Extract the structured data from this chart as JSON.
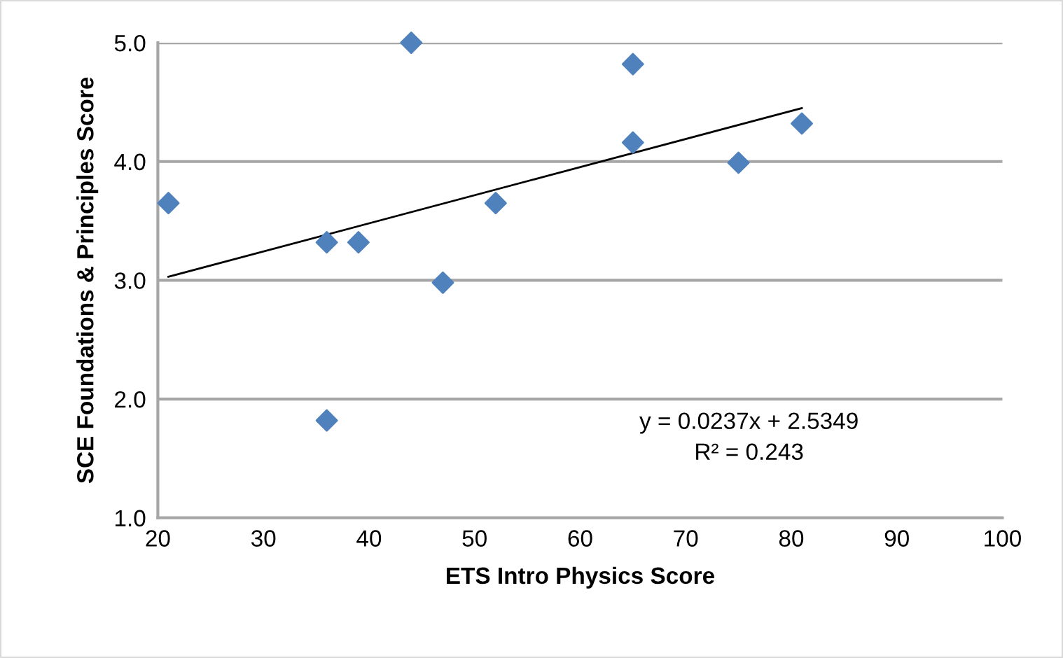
{
  "chart_data": {
    "type": "scatter",
    "xlabel": "ETS Intro Physics Score",
    "ylabel": "SCE Foundations & Principles Score",
    "series": [
      {
        "color": "#4f81bd",
        "marker": "diamond",
        "x": [
          21,
          36,
          39,
          44,
          47,
          52,
          65,
          65,
          75,
          81,
          36
        ],
        "values": [
          3.65,
          3.32,
          3.32,
          5.0,
          2.98,
          3.65,
          4.82,
          4.16,
          3.99,
          4.32,
          1.82
        ]
      },
      {
        "type": "line",
        "color": "#000000",
        "x": [
          21,
          81
        ],
        "values": [
          3.03,
          4.45
        ]
      }
    ],
    "xlim": [
      20,
      100
    ],
    "xticks": [
      20,
      30,
      40,
      50,
      60,
      70,
      80,
      90,
      100
    ],
    "ylim": [
      1.0,
      5.0
    ],
    "yticks": [
      {
        "value": 1,
        "label": "1.0"
      },
      {
        "value": 2,
        "label": "2.0"
      },
      {
        "value": 3,
        "label": "3.0"
      },
      {
        "value": 4,
        "label": "4.0"
      },
      {
        "value": 5,
        "label": "5.0"
      }
    ],
    "grid": "y",
    "legend": false,
    "annotations": [
      "y = 0.0237x + 2.5349",
      "R² = 0.243"
    ]
  }
}
